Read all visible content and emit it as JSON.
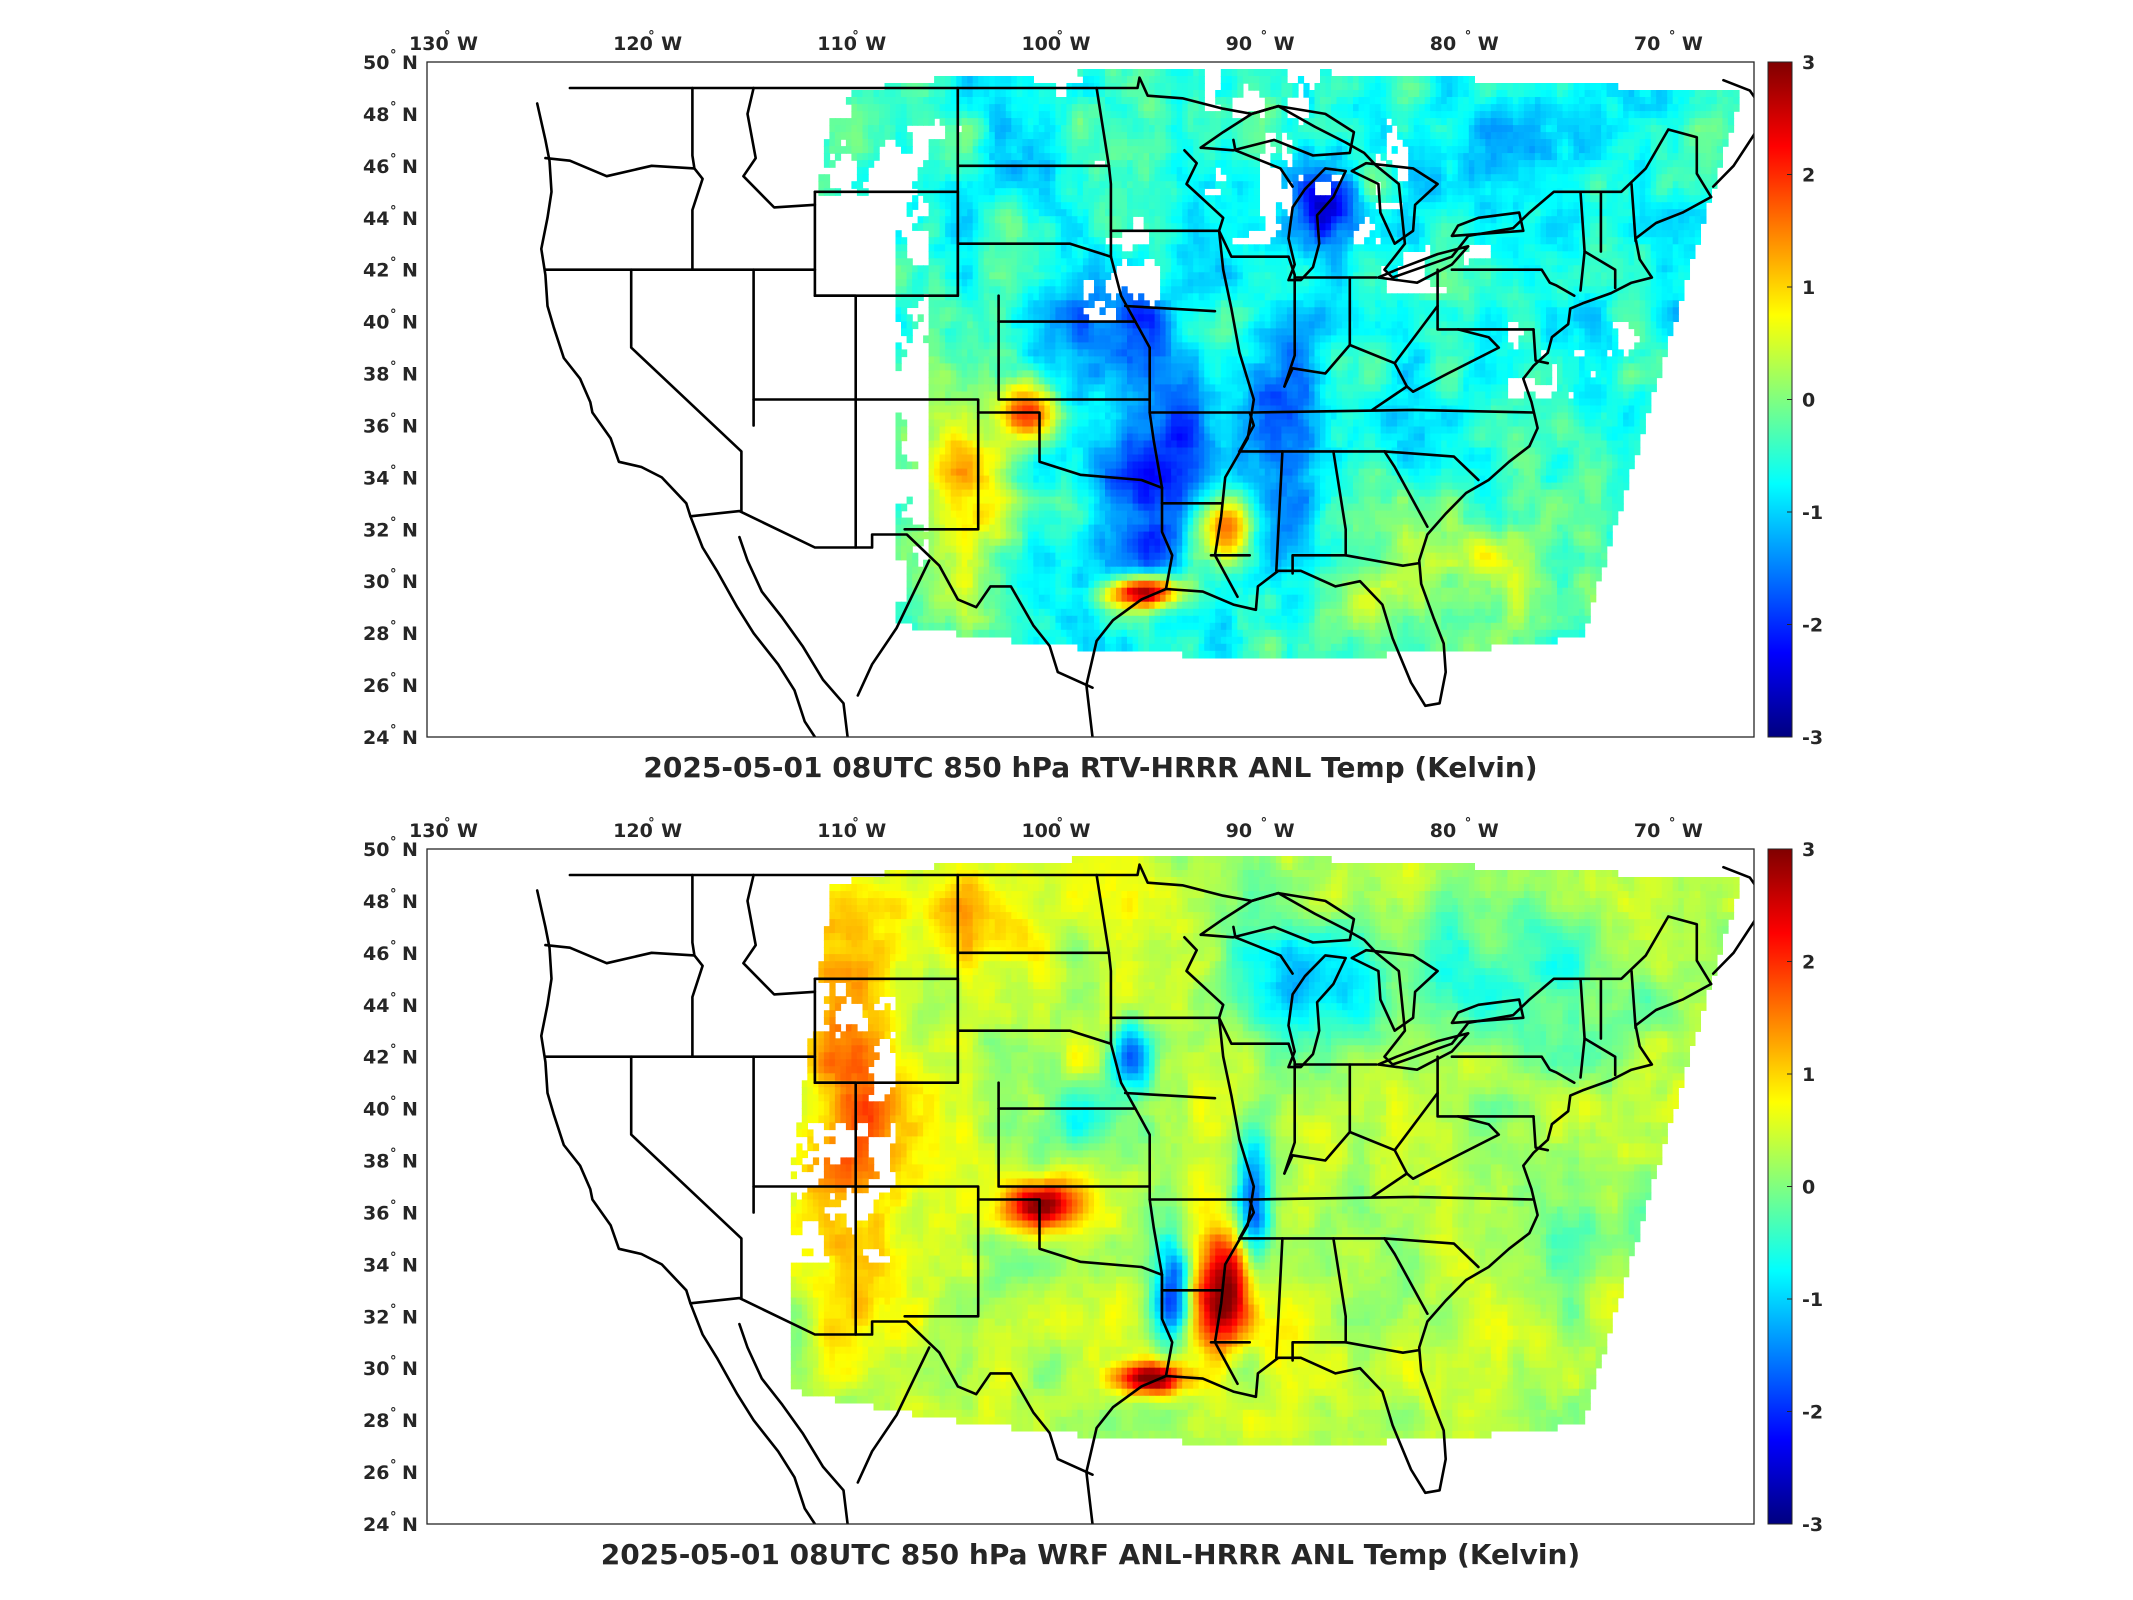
{
  "panels": [
    {
      "title": "2025-05-01 08UTC 850 hPa RTV-HRRR ANL Temp (Kelvin)",
      "kind": "rtv",
      "field_character": "mostly negative (cool) differences, blue over central/southern plains and Mississippi valley, warm red along Texas Gulf coast and SW Kansas, white gaps where missing"
    },
    {
      "title": "2025-05-01 08UTC 850 hPa WRF ANL-HRRR ANL Temp (Kelvin)",
      "kind": "wrf",
      "field_character": "mostly near-zero to slightly positive (green-yellow), warm red/orange over western plains, Louisiana and Texas coast, blue band along Mississippi valley and Great Lakes"
    }
  ],
  "lon_labels": [
    "130",
    "120",
    "110",
    "100",
    "90",
    "80",
    "70"
  ],
  "lon_hemisphere": "W",
  "lat_labels": [
    "50",
    "48",
    "46",
    "44",
    "42",
    "40",
    "38",
    "36",
    "34",
    "32",
    "30",
    "28",
    "26",
    "24"
  ],
  "lat_hemisphere": "N",
  "degree_symbol": "°",
  "colorbar": {
    "ticks": [
      "3",
      "2",
      "1",
      "0",
      "-1",
      "-2",
      "-3"
    ],
    "range": [
      -3,
      3
    ],
    "colormap": "jet",
    "units": "Kelvin"
  },
  "colors": {
    "missing": "#ffffff",
    "outline": "#000000",
    "text": "#262626"
  }
}
